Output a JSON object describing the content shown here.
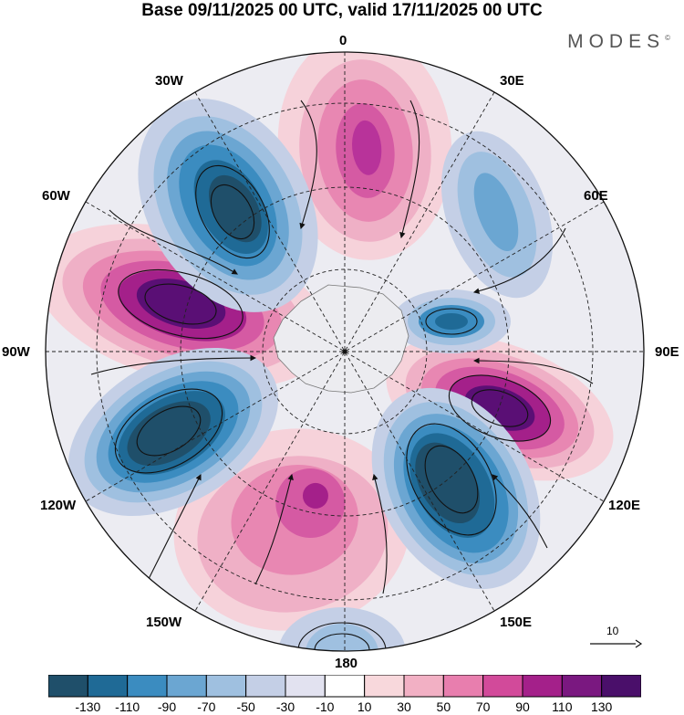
{
  "header": {
    "title": "Base 09/11/2025 00 UTC, valid 17/11/2025 00 UTC",
    "brand": "MODES",
    "brand_mark": "©"
  },
  "map": {
    "projection": "south-polar-stereographic",
    "longitude_labels": {
      "top": "0",
      "top_right": "30E",
      "right_upper": "60E",
      "right": "90E",
      "right_lower": "120E",
      "bottom_right": "150E",
      "bottom": "180",
      "bottom_left": "150W",
      "left_lower": "120W",
      "left": "90W",
      "left_upper": "60W",
      "top_left": "30W"
    },
    "reference_vector_label": "10"
  },
  "colorbar": {
    "ticks": [
      "-130",
      "-110",
      "-90",
      "-70",
      "-50",
      "-30",
      "-10",
      "10",
      "30",
      "50",
      "70",
      "90",
      "110",
      "130"
    ],
    "colors": [
      "#1f4f6a",
      "#1f6a96",
      "#3b8cc0",
      "#6ba6d2",
      "#9fc0e0",
      "#c4cfe6",
      "#e2e2f0",
      "#ffffff",
      "#f8d8dc",
      "#f2b0c4",
      "#e87eae",
      "#d24a9a",
      "#a4208a",
      "#7a1880",
      "#4a0f6a"
    ]
  }
}
